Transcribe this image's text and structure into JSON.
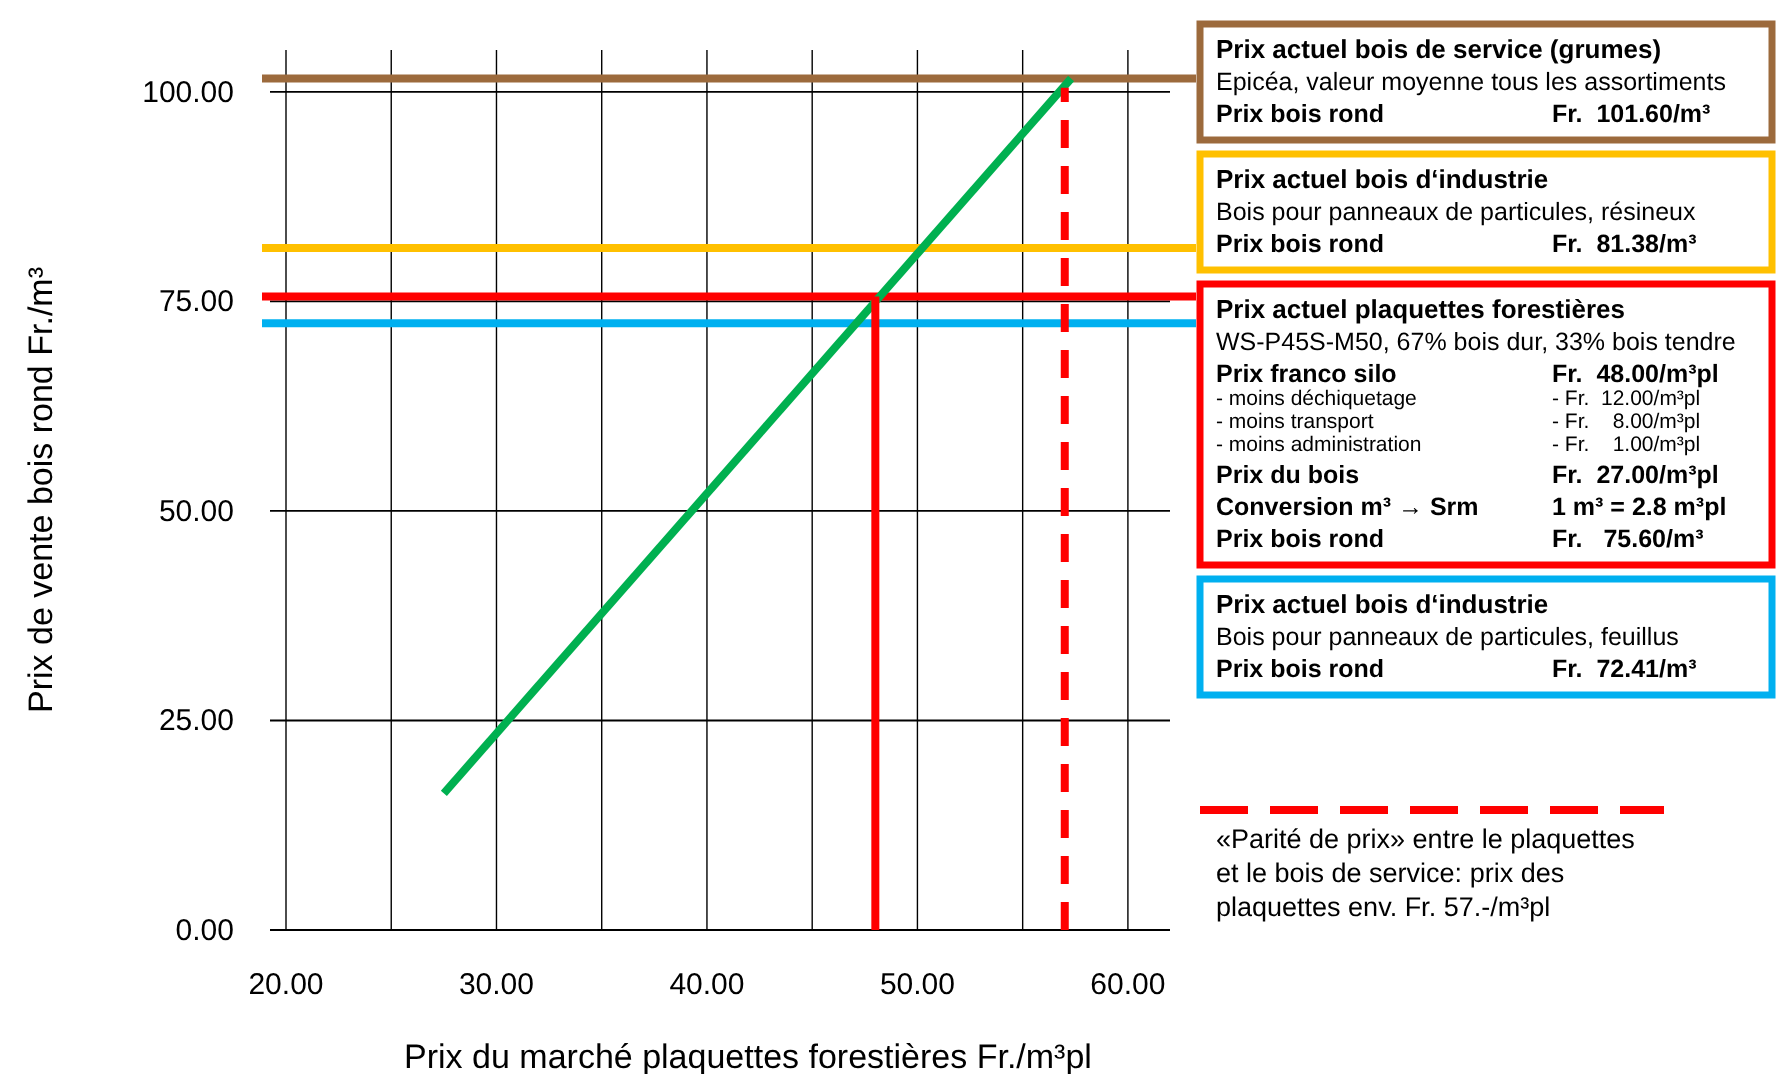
{
  "chart_data": {
    "type": "line",
    "xlabel": "Prix du marché plaquettes forestières Fr./m³pl",
    "ylabel": "Prix de vente bois rond Fr./m³",
    "xlim": [
      20,
      62
    ],
    "ylim": [
      0,
      105
    ],
    "xticks": [
      {
        "value": 20,
        "label": "20.00"
      },
      {
        "value": 25,
        "label": null
      },
      {
        "value": 30,
        "label": "30.00"
      },
      {
        "value": 35,
        "label": null
      },
      {
        "value": 40,
        "label": "40.00"
      },
      {
        "value": 45,
        "label": null
      },
      {
        "value": 50,
        "label": "50.00"
      },
      {
        "value": 55,
        "label": null
      },
      {
        "value": 60,
        "label": "60.00"
      }
    ],
    "yticks": [
      {
        "value": 0,
        "label": "0.00"
      },
      {
        "value": 25,
        "label": "25.00"
      },
      {
        "value": 50,
        "label": "50.00"
      },
      {
        "value": 75,
        "label": "75.00"
      },
      {
        "value": 100,
        "label": "100.00"
      }
    ],
    "grid": true,
    "legend": "right",
    "marker": "none",
    "series": [
      {
        "color": "#00b050",
        "x": [
          27.5,
          57.3
        ],
        "values": [
          16.3,
          101.6
        ],
        "line_style": "solid"
      },
      {
        "color": "#ff0000",
        "x": [
          48,
          48
        ],
        "values": [
          0,
          75.6
        ],
        "line_style": "solid"
      },
      {
        "name": "«Parité de prix» entre le plaquettes\net le bois de service: prix des\nplaquettes env. Fr. 57.-/m³pl",
        "color": "#ff0000",
        "x": [
          57,
          57
        ],
        "values": [
          0,
          100.5
        ],
        "line_style": "dashed"
      }
    ],
    "ref_lines": [
      {
        "axis": "y",
        "value": 101.6,
        "color": "#9c6a3c",
        "label": "Prix actuel bois de service (grumes)\nEpicéa, valeur moyenne tous les assortiments\nPrix bois rond\tFr.  101.60/m³"
      },
      {
        "axis": "y",
        "value": 81.38,
        "color": "#ffc000",
        "label": "Prix actuel bois d‘industrie\nBois pour panneaux de particules, résineux\nPrix bois rond\tFr.  81.38/m³"
      },
      {
        "axis": "y",
        "value": 75.6,
        "color": "#ff0000",
        "label": "Prix actuel plaquettes forestières\nWS-P45S-M50, 67% bois dur, 33% bois tendre\nPrix franco silo\tFr.  48.00/m³pl\n- moins déchiquetage\t- Fr.  12.00/m³pl\n- moins transport\t- Fr.    8.00/m³pl\n- moins administration\t- Fr.    1.00/m³pl\nPrix du bois\tFr.  27.00/m³pl\nConversion m³ →  Srm\t1 m³ = 2.8 m³pl\nPrix bois rond\tFr.   75.60/m³"
      },
      {
        "axis": "y",
        "value": 72.41,
        "color": "#00b0f0",
        "label": "Prix actuel bois d‘industrie\nBois pour panneaux de particules, feuillus\nPrix bois rond\tFr.  72.41/m³"
      }
    ]
  }
}
